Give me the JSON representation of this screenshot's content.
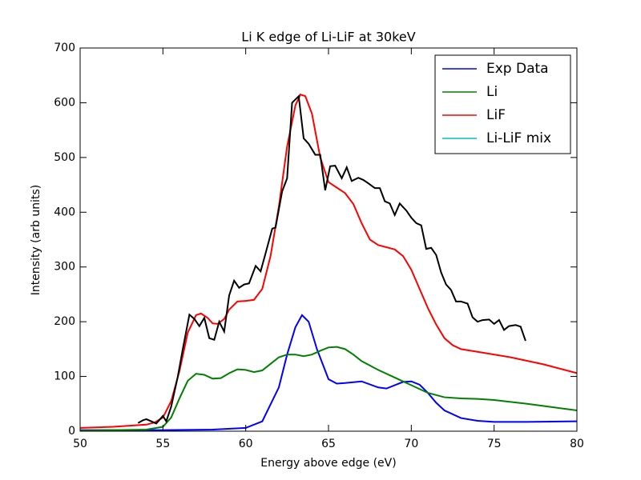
{
  "chart_data": {
    "type": "line",
    "title": "Li K edge of Li-LiF at 30keV",
    "x_label": "Energy above edge (eV)",
    "y_label": "Intensity (arb units)",
    "xlim": [
      50,
      80
    ],
    "xticks": [
      50,
      55,
      60,
      65,
      70,
      75,
      80
    ],
    "ylim": [
      0,
      700
    ],
    "yticks": [
      0,
      100,
      200,
      300,
      400,
      500,
      600,
      700
    ],
    "legend": "upper right",
    "series": [
      {
        "name": "Exp Data",
        "color": "#0000ff",
        "x": [
          50,
          55,
          58,
          60,
          61,
          62,
          62.5,
          63,
          63.4,
          63.8,
          64.3,
          65,
          65.5,
          66,
          67,
          68,
          68.5,
          69.5,
          70,
          70.5,
          71,
          71.5,
          72,
          73,
          74,
          75,
          77,
          80
        ],
        "values": [
          2,
          2,
          3,
          6,
          18,
          80,
          140,
          190,
          212,
          200,
          150,
          95,
          87,
          88,
          91,
          80,
          78,
          90,
          91,
          85,
          70,
          52,
          38,
          24,
          19,
          17,
          17,
          18
        ]
      },
      {
        "name": "Li",
        "color": "#008000",
        "x": [
          50,
          54,
          55,
          55.5,
          56,
          56.5,
          57,
          57.5,
          58,
          58.5,
          59,
          59.5,
          60,
          60.5,
          61,
          61.5,
          62,
          62.5,
          63,
          63.5,
          64,
          64.5,
          65,
          65.5,
          66,
          66.5,
          67,
          68,
          69,
          70,
          71,
          72,
          73,
          74,
          75,
          77,
          80
        ],
        "values": [
          1,
          3,
          8,
          25,
          60,
          92,
          105,
          103,
          96,
          97,
          106,
          113,
          112,
          108,
          111,
          123,
          135,
          140,
          140,
          137,
          140,
          147,
          153,
          154,
          150,
          140,
          128,
          112,
          98,
          84,
          70,
          62,
          60,
          59,
          57,
          50,
          38
        ]
      },
      {
        "name": "LiF",
        "color": "#ff0000",
        "x": [
          50,
          52,
          54,
          54.5,
          55,
          55.5,
          56,
          56.5,
          57,
          57.3,
          57.7,
          58,
          58.3,
          58.7,
          59,
          59.5,
          60,
          60.5,
          61,
          61.5,
          62,
          62.5,
          63,
          63.3,
          63.6,
          64,
          64.5,
          65,
          65.5,
          66,
          66.5,
          67,
          67.5,
          68,
          69,
          69.5,
          70,
          70.5,
          71,
          71.5,
          72,
          72.5,
          73,
          74,
          76,
          78,
          80
        ],
        "values": [
          6,
          8,
          12,
          16,
          25,
          55,
          110,
          180,
          212,
          215,
          207,
          197,
          196,
          205,
          222,
          237,
          238,
          240,
          260,
          320,
          410,
          520,
          595,
          615,
          612,
          580,
          500,
          455,
          445,
          435,
          415,
          380,
          350,
          340,
          332,
          320,
          295,
          260,
          225,
          195,
          170,
          157,
          150,
          145,
          135,
          122,
          106
        ]
      },
      {
        "name": "Li-LiF mix",
        "color": "#00bfbf",
        "x": [],
        "values": []
      },
      {
        "color": "#000000",
        "x": [
          53.5,
          53.8,
          54.0,
          54.3,
          54.6,
          55.0,
          55.2,
          55.5,
          55.9,
          56.2,
          56.6,
          56.9,
          57.2,
          57.5,
          57.8,
          58.1,
          58.4,
          58.7,
          59.0,
          59.3,
          59.6,
          59.9,
          60.2,
          60.6,
          60.9,
          61.2,
          61.6,
          61.8,
          62.2,
          62.5,
          62.8,
          63.2,
          63.5,
          63.8,
          64.2,
          64.5,
          64.8,
          65.1,
          65.4,
          65.8,
          66.1,
          66.4,
          66.8,
          67.1,
          67.4,
          67.8,
          68.1,
          68.4,
          68.7,
          69.0,
          69.3,
          69.7,
          70.0,
          70.3,
          70.6,
          70.9,
          71.2,
          71.5,
          71.8,
          72.1,
          72.4,
          72.7,
          73.0,
          73.4,
          73.7,
          74.0,
          74.3,
          74.7,
          75.0,
          75.3,
          75.6,
          75.9,
          76.3,
          76.6,
          76.9
        ],
        "values": [
          15,
          20,
          22,
          18,
          14,
          28,
          18,
          45,
          100,
          150,
          213,
          205,
          192,
          207,
          170,
          167,
          200,
          182,
          248,
          275,
          262,
          268,
          270,
          302,
          292,
          325,
          370,
          372,
          438,
          462,
          600,
          612,
          535,
          525,
          505,
          505,
          440,
          484,
          485,
          462,
          482,
          457,
          463,
          459,
          453,
          444,
          444,
          420,
          416,
          395,
          416,
          403,
          390,
          380,
          376,
          333,
          335,
          322,
          290,
          268,
          258,
          237,
          237,
          233,
          208,
          200,
          203,
          204,
          196,
          203,
          185,
          192,
          194,
          191,
          165
        ]
      }
    ]
  }
}
